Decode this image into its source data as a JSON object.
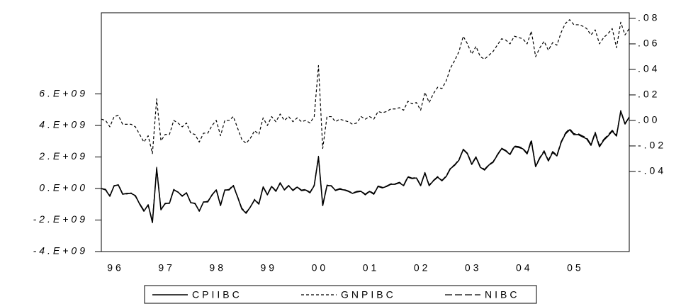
{
  "chart_data": {
    "type": "line",
    "legend": "bottom",
    "grid": false,
    "categories": [
      null,
      null,
      null,
      "96",
      null,
      null,
      null,
      null,
      null,
      null,
      null,
      null,
      null,
      null,
      null,
      "97",
      null,
      null,
      null,
      null,
      null,
      null,
      null,
      null,
      null,
      null,
      null,
      "98",
      null,
      null,
      null,
      null,
      null,
      null,
      null,
      null,
      null,
      null,
      null,
      "99",
      null,
      null,
      null,
      null,
      null,
      null,
      null,
      null,
      null,
      null,
      null,
      "00",
      null,
      null,
      null,
      null,
      null,
      null,
      null,
      null,
      null,
      null,
      null,
      "01",
      null,
      null,
      null,
      null,
      null,
      null,
      null,
      null,
      null,
      null,
      null,
      "02",
      null,
      null,
      null,
      null,
      null,
      null,
      null,
      null,
      null,
      null,
      null,
      "03",
      null,
      null,
      null,
      null,
      null,
      null,
      null,
      null,
      null,
      null,
      null,
      "04",
      null,
      null,
      null,
      null,
      null,
      null,
      null,
      null,
      null,
      null,
      null,
      "05",
      null,
      null,
      null,
      null,
      null,
      null,
      null,
      null,
      null,
      null,
      null,
      null,
      null
    ],
    "ylim": [
      -4000000000,
      11150000000
    ],
    "yticks": [
      {
        "value": -4000000000,
        "label": "-4.E+09"
      },
      {
        "value": -2000000000,
        "label": "-2.E+09"
      },
      {
        "value": 0,
        "label": "0.E+00"
      },
      {
        "value": 2000000000,
        "label": "2.E+09"
      },
      {
        "value": 4000000000,
        "label": "4.E+09"
      },
      {
        "value": 6000000000,
        "label": "6.E+09"
      }
    ],
    "y2lim": [
      -0.1028,
      0.0844
    ],
    "y2ticks": [
      {
        "value": -0.04,
        "label": "-.04"
      },
      {
        "value": -0.02,
        "label": "-.02"
      },
      {
        "value": 0,
        "label": ".00"
      },
      {
        "value": 0.02,
        "label": ".02"
      },
      {
        "value": 0.04,
        "label": ".04"
      },
      {
        "value": 0.06,
        "label": ".06"
      },
      {
        "value": 0.08,
        "label": ".08"
      }
    ],
    "series": [
      {
        "name": "CPIIBC",
        "color": "#000000",
        "values": [
          0,
          -90000000.0,
          -490000000.0,
          180000000.0,
          220000000.0,
          -360000000.0,
          -310000000.0,
          -310000000.0,
          -450000000.0,
          -990000000.0,
          -1440000000.0,
          -1030000000.0,
          -2160000000.0,
          1260000000.0,
          -1350000000.0,
          -940000000.0,
          -940000000.0,
          -90000000.0,
          -220000000.0,
          -490000000.0,
          -270000000.0,
          -900000000.0,
          -940000000.0,
          -1440000000.0,
          -850000000.0,
          -850000000.0,
          -400000000.0,
          -90000000.0,
          -1080000000.0,
          -90000000.0,
          -90000000.0,
          180000000.0,
          -540000000.0,
          -1300000000.0,
          -1570000000.0,
          -1170000000.0,
          -720000000.0,
          -990000000.0,
          90000000.0,
          -400000000.0,
          130000000.0,
          -180000000.0,
          360000000.0,
          -90000000.0,
          180000000.0,
          -130000000.0,
          90000000.0,
          -130000000.0,
          -90000000.0,
          -270000000.0,
          180000000.0,
          1980000000.0,
          -1080000000.0,
          180000000.0,
          180000000.0,
          -130000000.0,
          -40000000.0,
          -90000000.0,
          -180000000.0,
          -310000000.0,
          -220000000.0,
          -180000000.0,
          -400000000.0,
          -180000000.0,
          -360000000.0,
          130000000.0,
          40000000.0,
          130000000.0,
          270000000.0,
          270000000.0,
          360000000.0,
          180000000.0,
          720000000.0,
          630000000.0,
          670000000.0,
          180000000.0,
          990000000.0,
          180000000.0,
          490000000.0,
          720000000.0,
          490000000.0,
          760000000.0,
          1260000000.0,
          1480000000.0,
          1800000000.0,
          2470000000.0,
          2200000000.0,
          1530000000.0,
          1980000000.0,
          1350000000.0,
          1170000000.0,
          1480000000.0,
          1660000000.0,
          2110000000.0,
          2520000000.0,
          2380000000.0,
          2160000000.0,
          2650000000.0,
          2610000000.0,
          2520000000.0,
          2200000000.0,
          3010000000.0,
          1390000000.0,
          1930000000.0,
          2340000000.0,
          1750000000.0,
          2290000000.0,
          2070000000.0,
          2920000000.0,
          3460000000.0,
          3730000000.0,
          3420000000.0,
          3420000000.0,
          3280000000.0,
          3150000000.0,
          2740000000.0,
          3510000000.0,
          2650000000.0,
          3060000000.0,
          3330000000.0,
          3640000000.0,
          3330000000.0,
          4900000000.0,
          4090000000.0,
          4540000000.0
        ]
      },
      {
        "name": "GNPIBC",
        "color": "#000000",
        "axis": "y2",
        "dash": "4,3",
        "values": [
          0.001,
          0.0,
          -0.005,
          0.003,
          0.004,
          -0.003,
          -0.003,
          -0.003,
          -0.005,
          -0.011,
          -0.017,
          -0.012,
          -0.026,
          0.017,
          -0.016,
          -0.011,
          -0.011,
          0.0,
          -0.002,
          -0.005,
          -0.002,
          -0.01,
          -0.011,
          -0.017,
          -0.01,
          -0.01,
          -0.004,
          0.0,
          -0.012,
          0.0,
          0.0,
          0.003,
          -0.006,
          -0.015,
          -0.018,
          -0.014,
          -0.008,
          -0.011,
          0.002,
          -0.004,
          0.003,
          -0.001,
          0.005,
          0.0,
          0.003,
          -0.001,
          0.002,
          -0.001,
          0.0,
          -0.002,
          0.003,
          0.043,
          -0.022,
          0.003,
          0.003,
          -0.001,
          0.001,
          0.0,
          -0.001,
          -0.003,
          -0.002,
          0.003,
          0.001,
          0.003,
          0.001,
          0.007,
          0.006,
          0.007,
          0.009,
          0.009,
          0.01,
          0.008,
          0.015,
          0.013,
          0.014,
          0.008,
          0.022,
          0.014,
          0.021,
          0.026,
          0.025,
          0.031,
          0.041,
          0.047,
          0.054,
          0.066,
          0.06,
          0.052,
          0.058,
          0.05,
          0.048,
          0.051,
          0.054,
          0.059,
          0.064,
          0.063,
          0.06,
          0.066,
          0.065,
          0.064,
          0.06,
          0.07,
          0.05,
          0.057,
          0.062,
          0.055,
          0.061,
          0.059,
          0.069,
          0.076,
          0.079,
          0.075,
          0.075,
          0.074,
          0.072,
          0.067,
          0.071,
          0.06,
          0.065,
          0.068,
          0.072,
          0.057,
          0.077,
          0.067,
          0.072
        ]
      },
      {
        "name": "NIBC",
        "color": "#000000",
        "dash": "10,4",
        "values": [
          0,
          -50000000.0,
          -450000000.0,
          150000000.0,
          250000000.0,
          -320000000.0,
          -350000000.0,
          -280000000.0,
          -500000000.0,
          -950000000.0,
          -1380000000.0,
          -1080000000.0,
          -2050000000.0,
          1350000000.0,
          -1300000000.0,
          -980000000.0,
          -900000000.0,
          -50000000.0,
          -250000000.0,
          -450000000.0,
          -300000000.0,
          -860000000.0,
          -980000000.0,
          -1400000000.0,
          -880000000.0,
          -800000000.0,
          -440000000.0,
          -50000000.0,
          -1020000000.0,
          -120000000.0,
          -50000000.0,
          220000000.0,
          -500000000.0,
          -1250000000.0,
          -1500000000.0,
          -1200000000.0,
          -680000000.0,
          -950000000.0,
          120000000.0,
          -360000000.0,
          160000000.0,
          -140000000.0,
          320000000.0,
          -50000000.0,
          200000000.0,
          -100000000.0,
          120000000.0,
          -100000000.0,
          -50000000.0,
          -240000000.0,
          220000000.0,
          2050000000.0,
          -1020000000.0,
          220000000.0,
          150000000.0,
          -100000000.0,
          0.0,
          -60000000.0,
          -150000000.0,
          -280000000.0,
          -180000000.0,
          -150000000.0,
          -360000000.0,
          -150000000.0,
          -320000000.0,
          160000000.0,
          80000000.0,
          160000000.0,
          300000000.0,
          300000000.0,
          400000000.0,
          220000000.0,
          760000000.0,
          660000000.0,
          700000000.0,
          220000000.0,
          1020000000.0,
          220000000.0,
          520000000.0,
          760000000.0,
          520000000.0,
          800000000.0,
          1300000000.0,
          1520000000.0,
          1840000000.0,
          2500000000.0,
          2240000000.0,
          1580000000.0,
          2020000000.0,
          1400000000.0,
          1220000000.0,
          1520000000.0,
          1700000000.0,
          2150000000.0,
          2560000000.0,
          2420000000.0,
          2200000000.0,
          2700000000.0,
          2660000000.0,
          2560000000.0,
          2250000000.0,
          3100000000.0,
          1450000000.0,
          1980000000.0,
          2400000000.0,
          1800000000.0,
          2350000000.0,
          2120000000.0,
          2980000000.0,
          3520000000.0,
          3800000000.0,
          3480000000.0,
          3480000000.0,
          3340000000.0,
          3220000000.0,
          2800000000.0,
          3580000000.0,
          2720000000.0,
          3120000000.0,
          3400000000.0,
          3700000000.0,
          3400000000.0,
          4950000000.0,
          4150000000.0,
          4500000000.0
        ]
      }
    ]
  }
}
